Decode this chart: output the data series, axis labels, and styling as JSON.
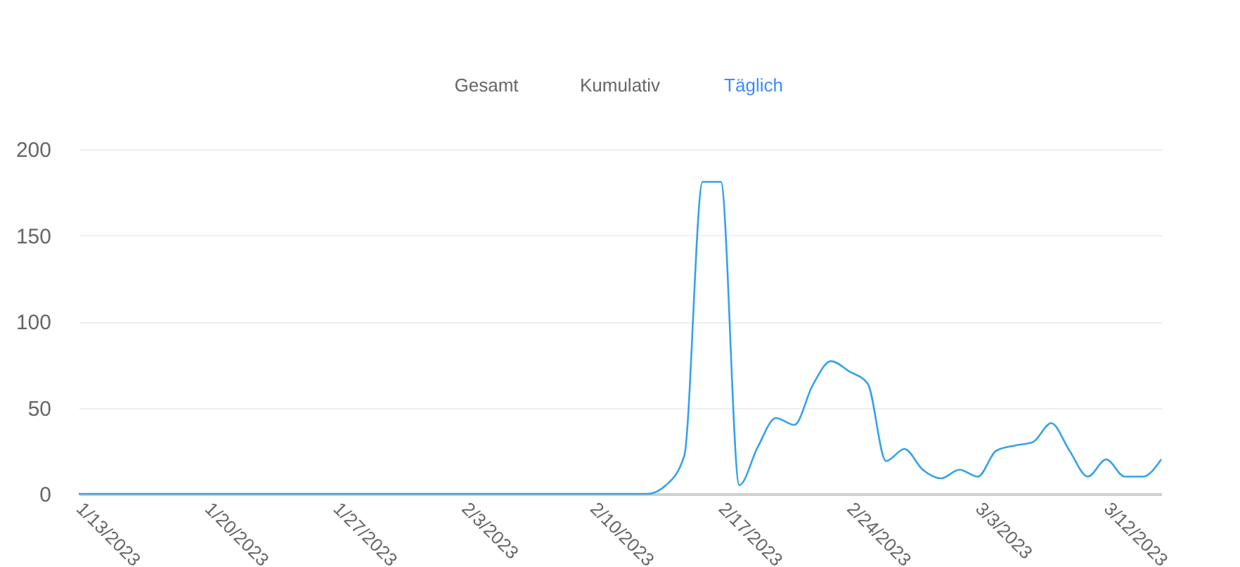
{
  "chart_data": {
    "type": "line",
    "annotations": [
      "Gesamt",
      "Kumulativ",
      "Täglich"
    ],
    "categories": [
      "1/13/2023",
      null,
      null,
      null,
      null,
      null,
      null,
      "1/20/2023",
      null,
      null,
      null,
      null,
      null,
      null,
      "1/27/2023",
      null,
      null,
      null,
      null,
      null,
      null,
      "2/3/2023",
      null,
      null,
      null,
      null,
      null,
      null,
      "2/10/2023",
      null,
      null,
      null,
      null,
      null,
      null,
      "2/17/2023",
      null,
      null,
      null,
      null,
      null,
      null,
      "2/24/2023",
      null,
      null,
      null,
      null,
      null,
      null,
      "3/3/2023",
      null,
      null,
      null,
      null,
      null,
      null,
      "3/12/2023",
      null,
      null,
      null
    ],
    "series": [
      {
        "color": "#36a2eb",
        "values": [
          0,
          0,
          0,
          0,
          0,
          0,
          0,
          0,
          0,
          0,
          0,
          0,
          0,
          0,
          0,
          0,
          0,
          0,
          0,
          0,
          0,
          0,
          0,
          0,
          0,
          0,
          0,
          0,
          0,
          0,
          0,
          0,
          5,
          22,
          181,
          181,
          5,
          27,
          44,
          40,
          63,
          77,
          71,
          64,
          19,
          26,
          14,
          9,
          14,
          10,
          25,
          28,
          30,
          41,
          25,
          10,
          20,
          10,
          10,
          20
        ]
      }
    ],
    "ylim": [
      0,
      200
    ],
    "yticks": [
      0,
      50,
      100,
      150,
      200
    ],
    "grid": "y",
    "marker": "none",
    "line_style": "solid"
  }
}
